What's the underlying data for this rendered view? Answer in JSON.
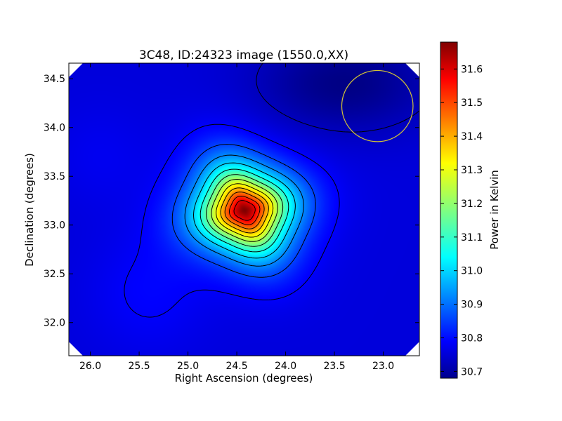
{
  "chart_data": {
    "type": "heatmap",
    "title": "3C48, ID:24323 image (1550.0,XX)",
    "xlabel": "Right Ascension (degrees)",
    "ylabel": "Declination (degrees)",
    "xlim": [
      26.22,
      22.63
    ],
    "ylim": [
      31.66,
      34.66
    ],
    "x_axis_inverted": true,
    "x_ticks": [
      26.0,
      25.5,
      25.0,
      24.5,
      24.0,
      23.5,
      23.0
    ],
    "x_tick_labels": [
      "26.0",
      "25.5",
      "25.0",
      "24.5",
      "24.0",
      "23.5",
      "23.0"
    ],
    "y_ticks": [
      32.0,
      32.5,
      33.0,
      33.5,
      34.0,
      34.5
    ],
    "y_tick_labels": [
      "32.0",
      "32.5",
      "33.0",
      "33.5",
      "34.0",
      "34.5"
    ],
    "colormap": "jet",
    "colorbar": {
      "label": "Power in Kelvin",
      "range": [
        30.68,
        31.68
      ],
      "ticks": [
        30.7,
        30.8,
        30.9,
        31.0,
        31.1,
        31.2,
        31.3,
        31.4,
        31.5,
        31.6
      ],
      "tick_labels": [
        "30.7",
        "30.8",
        "30.9",
        "31.0",
        "31.1",
        "31.2",
        "31.3",
        "31.4",
        "31.5",
        "31.6"
      ]
    },
    "source": {
      "ra": 24.42,
      "dec": 33.15,
      "peak_kelvin": 31.68
    },
    "background_kelvin": 30.77,
    "contour_levels": [
      30.74,
      30.8,
      30.87,
      30.94,
      31.01,
      31.08,
      31.15,
      31.22,
      31.29,
      31.36,
      31.43,
      31.5,
      31.57
    ],
    "beam_circle": {
      "ra": 23.06,
      "dec": 34.22,
      "radius_deg": 0.365,
      "color": "#d4c434"
    },
    "frame_color": "#000000",
    "blank_corner_color": "#ffffff"
  }
}
